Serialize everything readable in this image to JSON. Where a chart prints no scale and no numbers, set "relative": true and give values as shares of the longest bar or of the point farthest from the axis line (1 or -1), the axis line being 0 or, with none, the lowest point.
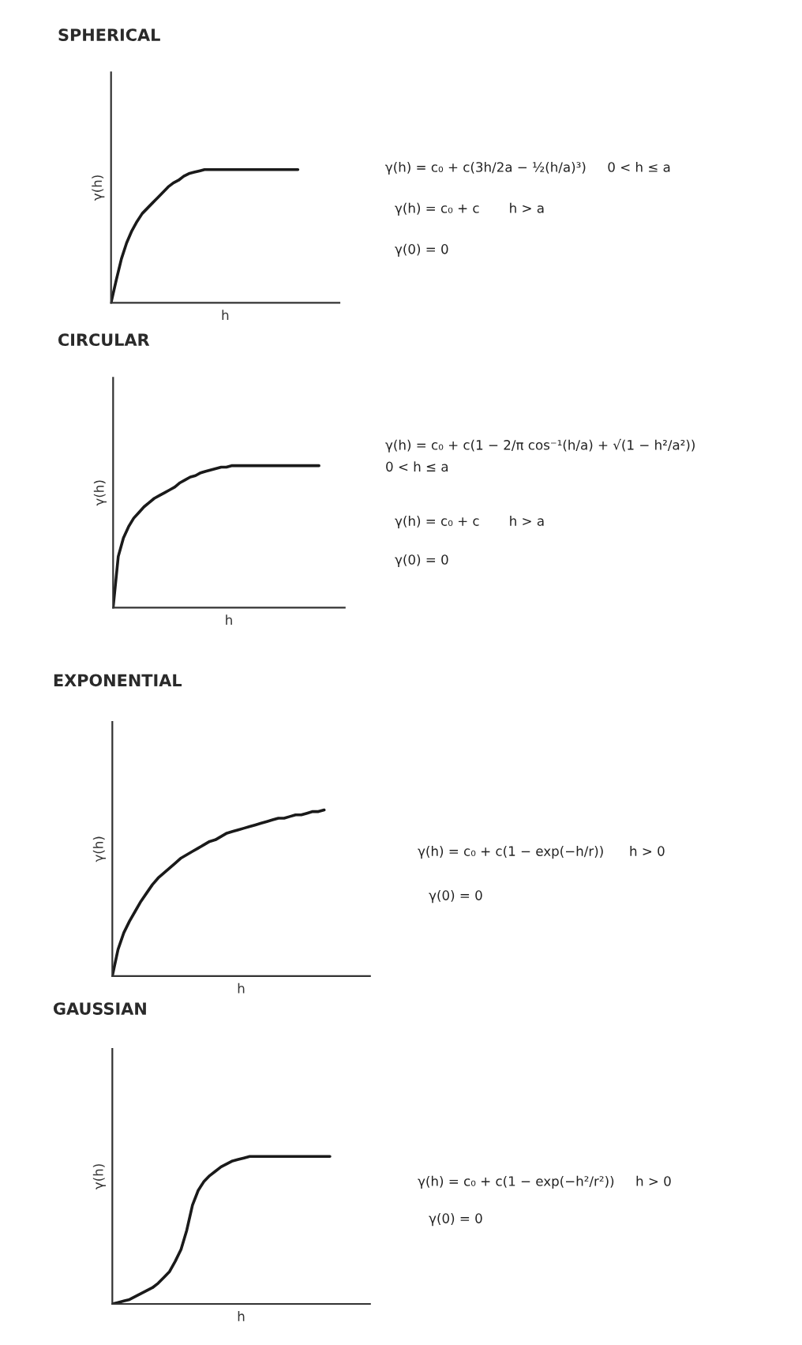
{
  "chart_data": [
    {
      "type": "line",
      "title": "SPHERICAL",
      "xlabel": "h",
      "ylabel": "γ(h)",
      "relative": true,
      "color": "#1a1a1a",
      "categories": [
        null,
        null,
        null,
        null,
        null,
        null,
        null,
        null,
        null,
        null,
        null,
        null,
        null,
        null,
        null,
        null,
        null,
        null,
        null,
        null,
        null,
        null,
        null,
        null,
        null,
        null,
        null,
        null,
        null,
        null,
        null,
        null,
        null,
        null,
        null,
        null,
        null,
        null,
        null,
        null,
        null,
        null,
        null,
        null,
        null
      ],
      "values": [
        0,
        0.17,
        0.33,
        0.45,
        0.54,
        0.61,
        0.67,
        0.71,
        0.75,
        0.79,
        0.83,
        0.87,
        0.9,
        0.92,
        0.95,
        0.97,
        0.98,
        0.99,
        1,
        1,
        1,
        1,
        1,
        1,
        1,
        1,
        1,
        1,
        1,
        1,
        1,
        1,
        1,
        1,
        1,
        1,
        1,
        null,
        null,
        null,
        null,
        null,
        null,
        null,
        null
      ],
      "annotations": [
        "γ(h) = c₀ + c(3h/2a − ½(h/a)³)     0 < h ≤ a",
        "γ(h) = c₀ + c       h > a",
        "γ(0) = 0"
      ]
    },
    {
      "type": "line",
      "title": "CIRCULAR",
      "xlabel": "h",
      "ylabel": "γ(h)",
      "relative": true,
      "color": "#1a1a1a",
      "categories": [
        null,
        null,
        null,
        null,
        null,
        null,
        null,
        null,
        null,
        null,
        null,
        null,
        null,
        null,
        null,
        null,
        null,
        null,
        null,
        null,
        null,
        null,
        null,
        null,
        null,
        null,
        null,
        null,
        null,
        null,
        null,
        null,
        null,
        null,
        null,
        null,
        null,
        null,
        null,
        null,
        null,
        null,
        null,
        null,
        null,
        null
      ],
      "values": [
        0,
        0.36,
        0.49,
        0.57,
        0.63,
        0.67,
        0.71,
        0.74,
        0.77,
        0.79,
        0.81,
        0.83,
        0.85,
        0.88,
        0.9,
        0.92,
        0.93,
        0.95,
        0.96,
        0.97,
        0.98,
        0.99,
        0.99,
        1,
        1,
        1,
        1,
        1,
        1,
        1,
        1,
        1,
        1,
        1,
        1,
        1,
        1,
        1,
        1,
        1,
        1,
        null,
        null,
        null,
        null,
        null
      ],
      "annotations": [
        "γ(h) = c₀ + c(1 − 2/π cos⁻¹(h/a) + √(1 − h²/a²))\n0 < h ≤ a",
        "γ(h) = c₀ + c       h > a",
        "γ(0) = 0"
      ]
    },
    {
      "type": "line",
      "title": "EXPONENTIAL",
      "xlabel": "h",
      "ylabel": "γ(h)",
      "relative": true,
      "color": "#1a1a1a",
      "categories": [
        null,
        null,
        null,
        null,
        null,
        null,
        null,
        null,
        null,
        null,
        null,
        null,
        null,
        null,
        null,
        null,
        null,
        null,
        null,
        null,
        null,
        null,
        null,
        null,
        null,
        null,
        null,
        null,
        null,
        null,
        null,
        null,
        null,
        null,
        null,
        null,
        null,
        null,
        null,
        null,
        null,
        null,
        null,
        null,
        null,
        null
      ],
      "values": [
        0,
        0.16,
        0.26,
        0.33,
        0.39,
        0.45,
        0.5,
        0.55,
        0.59,
        0.62,
        0.65,
        0.68,
        0.71,
        0.73,
        0.75,
        0.77,
        0.79,
        0.81,
        0.82,
        0.84,
        0.86,
        0.87,
        0.88,
        0.89,
        0.9,
        0.91,
        0.92,
        0.93,
        0.94,
        0.95,
        0.95,
        0.96,
        0.97,
        0.97,
        0.98,
        0.99,
        0.99,
        1,
        null,
        null,
        null,
        null,
        null,
        null,
        null,
        null
      ],
      "annotations": [
        "γ(h) = c₀ + c(1 − exp(−h/r))      h > 0",
        "γ(0) = 0"
      ]
    },
    {
      "type": "line",
      "title": "GAUSSIAN",
      "xlabel": "h",
      "ylabel": "γ(h)",
      "relative": true,
      "color": "#1a1a1a",
      "categories": [
        null,
        null,
        null,
        null,
        null,
        null,
        null,
        null,
        null,
        null,
        null,
        null,
        null,
        null,
        null,
        null,
        null,
        null,
        null,
        null,
        null,
        null,
        null,
        null,
        null,
        null,
        null,
        null,
        null,
        null,
        null,
        null,
        null,
        null,
        null,
        null,
        null,
        null,
        null,
        null,
        null,
        null,
        null,
        null,
        null,
        null
      ],
      "values": [
        0,
        0.01,
        0.02,
        0.03,
        0.05,
        0.07,
        0.09,
        0.11,
        0.14,
        0.18,
        0.22,
        0.29,
        0.37,
        0.5,
        0.67,
        0.77,
        0.83,
        0.87,
        0.9,
        0.93,
        0.95,
        0.97,
        0.98,
        0.99,
        1,
        1,
        1,
        1,
        1,
        1,
        1,
        1,
        1,
        1,
        1,
        1,
        1,
        1,
        1,
        null,
        null,
        null,
        null,
        null,
        null,
        null
      ],
      "annotations": [
        "γ(h) = c₀ + c(1 − exp(−h²/r²))     h > 0",
        "γ(0) = 0"
      ]
    }
  ]
}
